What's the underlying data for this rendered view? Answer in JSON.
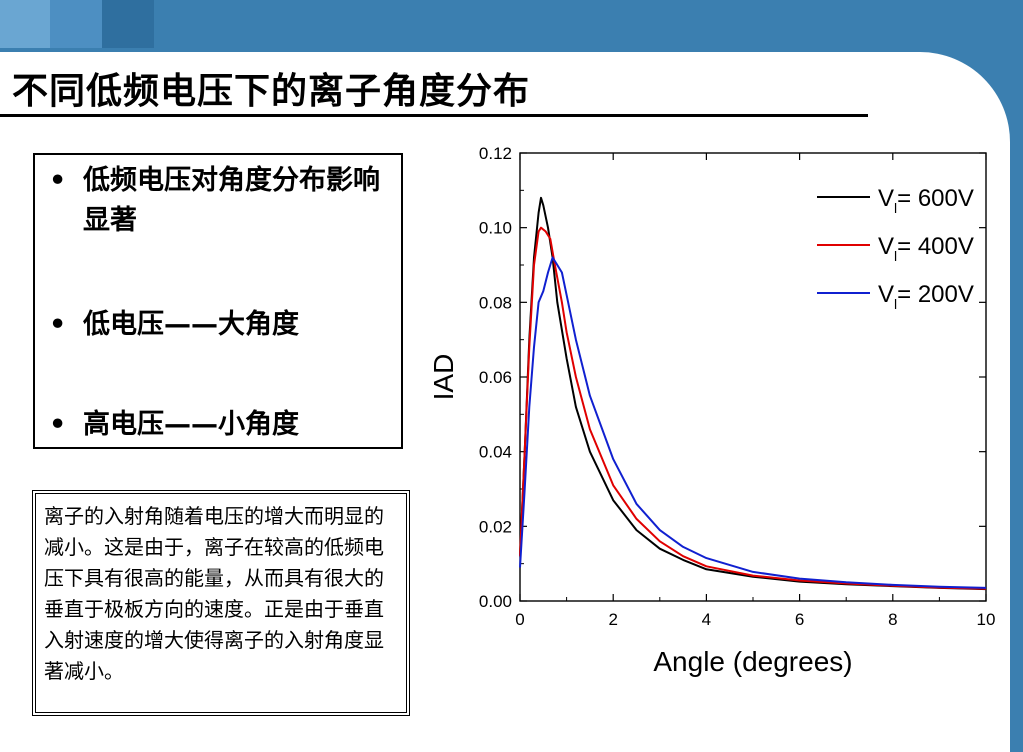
{
  "slide": {
    "title": "不同低频电压下的离子角度分布",
    "bullets": [
      {
        "dot": "•",
        "text": "低频电压对角度分布影响显著"
      },
      {
        "dot": "•",
        "text": "低电压——大角度"
      },
      {
        "dot": "•",
        "text": "高电压——小角度"
      }
    ],
    "note": "离子的入射角随着电压的增大而明显的减小。这是由于，离子在较高的低频电压下具有很高的能量，从而具有很大的垂直于极板方向的速度。正是由于垂直入射速度的增大使得离子的入射角度显著减小。"
  },
  "chart_data": {
    "type": "line",
    "title": "",
    "xlabel": "Angle (degrees)",
    "ylabel": "IAD",
    "xlim": [
      0,
      10
    ],
    "ylim": [
      0,
      0.12
    ],
    "x_ticks": [
      "0",
      "2",
      "4",
      "6",
      "8",
      "10"
    ],
    "y_ticks": [
      "0.00",
      "0.02",
      "0.04",
      "0.06",
      "0.08",
      "0.10",
      "0.12"
    ],
    "grid": false,
    "legend_position": "top-right",
    "series": [
      {
        "name": "Vl= 600V",
        "legend_main": "V",
        "legend_sub": "l",
        "legend_rest": "= 600V",
        "color": "#000000",
        "points": [
          [
            0,
            0.012
          ],
          [
            0.1,
            0.04
          ],
          [
            0.2,
            0.07
          ],
          [
            0.3,
            0.092
          ],
          [
            0.4,
            0.104
          ],
          [
            0.45,
            0.108
          ],
          [
            0.5,
            0.106
          ],
          [
            0.6,
            0.1
          ],
          [
            0.7,
            0.092
          ],
          [
            0.8,
            0.08
          ],
          [
            1.0,
            0.065
          ],
          [
            1.2,
            0.052
          ],
          [
            1.5,
            0.04
          ],
          [
            2.0,
            0.027
          ],
          [
            2.5,
            0.019
          ],
          [
            3.0,
            0.014
          ],
          [
            3.5,
            0.011
          ],
          [
            4.0,
            0.0085
          ],
          [
            5.0,
            0.0065
          ],
          [
            6.0,
            0.0052
          ],
          [
            7.0,
            0.0045
          ],
          [
            8.0,
            0.004
          ],
          [
            9.0,
            0.0035
          ],
          [
            10.0,
            0.0032
          ]
        ]
      },
      {
        "name": "Vl= 400V",
        "legend_main": "V",
        "legend_sub": "l",
        "legend_rest": "= 400V",
        "color": "#e00000",
        "points": [
          [
            0,
            0.012
          ],
          [
            0.1,
            0.04
          ],
          [
            0.2,
            0.068
          ],
          [
            0.3,
            0.09
          ],
          [
            0.4,
            0.099
          ],
          [
            0.45,
            0.1
          ],
          [
            0.55,
            0.099
          ],
          [
            0.65,
            0.097
          ],
          [
            0.75,
            0.09
          ],
          [
            0.9,
            0.08
          ],
          [
            1.0,
            0.072
          ],
          [
            1.2,
            0.06
          ],
          [
            1.5,
            0.046
          ],
          [
            2.0,
            0.031
          ],
          [
            2.5,
            0.022
          ],
          [
            3.0,
            0.016
          ],
          [
            3.5,
            0.012
          ],
          [
            4.0,
            0.0093
          ],
          [
            5.0,
            0.0068
          ],
          [
            6.0,
            0.0055
          ],
          [
            7.0,
            0.0047
          ],
          [
            8.0,
            0.0041
          ],
          [
            9.0,
            0.0036
          ],
          [
            10.0,
            0.0033
          ]
        ]
      },
      {
        "name": "Vl= 200V",
        "legend_main": "V",
        "legend_sub": "l",
        "legend_rest": "= 200V",
        "color": "#1020d0",
        "points": [
          [
            0,
            0.009
          ],
          [
            0.1,
            0.03
          ],
          [
            0.2,
            0.052
          ],
          [
            0.3,
            0.068
          ],
          [
            0.4,
            0.08
          ],
          [
            0.5,
            0.083
          ],
          [
            0.6,
            0.088
          ],
          [
            0.7,
            0.092
          ],
          [
            0.8,
            0.09
          ],
          [
            0.9,
            0.088
          ],
          [
            1.0,
            0.082
          ],
          [
            1.2,
            0.07
          ],
          [
            1.5,
            0.055
          ],
          [
            2.0,
            0.038
          ],
          [
            2.5,
            0.026
          ],
          [
            3.0,
            0.019
          ],
          [
            3.5,
            0.0145
          ],
          [
            4.0,
            0.0115
          ],
          [
            5.0,
            0.0078
          ],
          [
            6.0,
            0.006
          ],
          [
            7.0,
            0.005
          ],
          [
            8.0,
            0.0043
          ],
          [
            9.0,
            0.0038
          ],
          [
            10.0,
            0.0035
          ]
        ]
      }
    ]
  }
}
